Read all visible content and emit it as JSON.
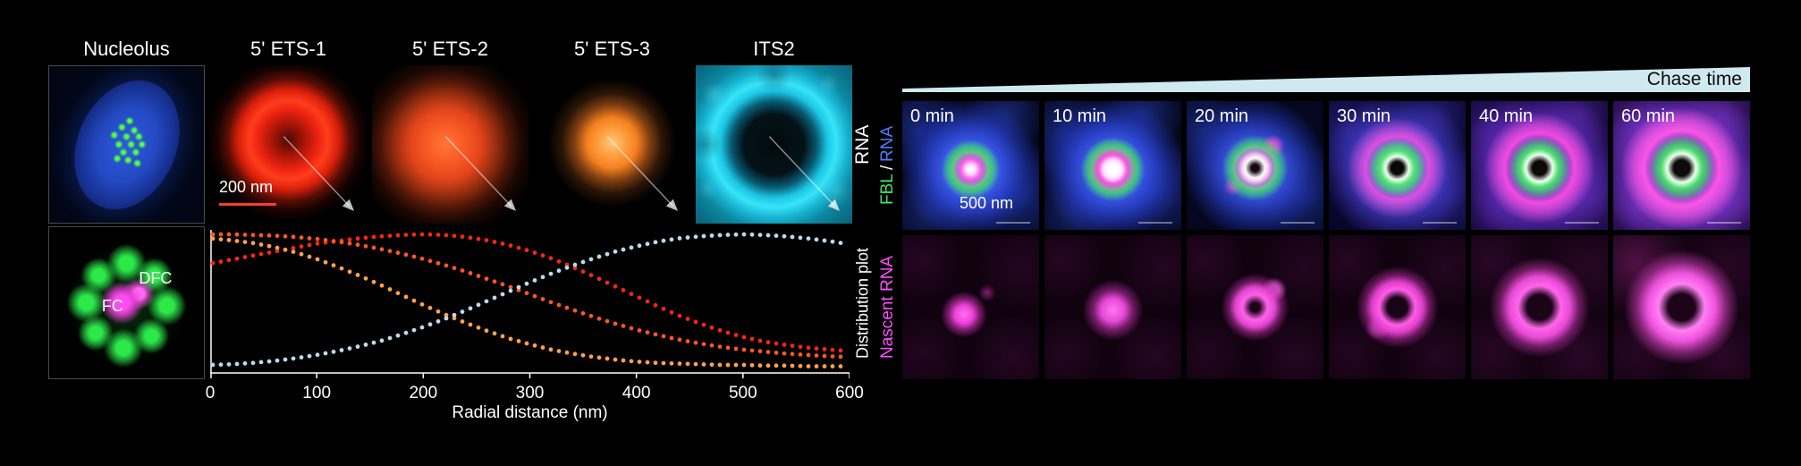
{
  "colors": {
    "fbl_green": "#43e06b",
    "rna_blue": "#4d7dff",
    "nascent_magenta": "#ff4dff",
    "wedge": "#cfe9f0",
    "scalebar_red": "#ff3c28"
  },
  "left": {
    "columns": [
      {
        "label": "Nucleolus"
      },
      {
        "label": "5' ETS-1"
      },
      {
        "label": "5' ETS-2"
      },
      {
        "label": "5' ETS-3"
      },
      {
        "label": "ITS2"
      }
    ],
    "row1_side_label": "RNA",
    "row2_side_label": "Distribution plot",
    "scalebar_200": "200 nm",
    "dfc_label": "DFC",
    "fc_label": "FC"
  },
  "chart_data": {
    "type": "scatter",
    "title": "",
    "xlabel": "Radial distance (nm)",
    "ylabel": "Distribution plot",
    "xlim": [
      0,
      600
    ],
    "ylim": [
      0,
      1
    ],
    "x_ticks": [
      0,
      100,
      200,
      300,
      400,
      500,
      600
    ],
    "grid": false,
    "legend": "none",
    "series": [
      {
        "name": "5' ETS-1",
        "color": "#ff2414",
        "x": [
          0,
          20,
          40,
          60,
          80,
          100,
          120,
          140,
          160,
          180,
          200,
          220,
          240,
          260,
          280,
          300,
          320,
          340,
          360,
          380,
          400,
          420,
          440,
          460,
          480,
          500,
          520,
          540,
          560,
          580,
          600
        ],
        "y": [
          0.78,
          0.81,
          0.84,
          0.87,
          0.9,
          0.93,
          0.95,
          0.97,
          0.985,
          0.995,
          1.0,
          0.995,
          0.98,
          0.955,
          0.92,
          0.875,
          0.82,
          0.755,
          0.685,
          0.61,
          0.535,
          0.46,
          0.39,
          0.33,
          0.275,
          0.23,
          0.195,
          0.17,
          0.15,
          0.135,
          0.125
        ]
      },
      {
        "name": "5' ETS-2",
        "color": "#ff5526",
        "x": [
          0,
          20,
          40,
          60,
          80,
          100,
          120,
          140,
          160,
          180,
          200,
          220,
          240,
          260,
          280,
          300,
          320,
          340,
          360,
          380,
          400,
          420,
          440,
          460,
          480,
          500,
          520,
          540,
          560,
          580,
          600
        ],
        "y": [
          1.0,
          1.0,
          0.995,
          0.99,
          0.98,
          0.965,
          0.945,
          0.92,
          0.89,
          0.855,
          0.815,
          0.77,
          0.72,
          0.665,
          0.61,
          0.55,
          0.49,
          0.435,
          0.38,
          0.33,
          0.285,
          0.245,
          0.21,
          0.18,
          0.155,
          0.135,
          0.12,
          0.105,
          0.095,
          0.085,
          0.08
        ]
      },
      {
        "name": "5' ETS-3",
        "color": "#ffa14d",
        "x": [
          0,
          20,
          40,
          60,
          80,
          100,
          120,
          140,
          160,
          180,
          200,
          220,
          240,
          260,
          280,
          300,
          320,
          340,
          360,
          380,
          400,
          420,
          440,
          460,
          480,
          500,
          520,
          540,
          560,
          580,
          600
        ],
        "y": [
          0.97,
          0.955,
          0.935,
          0.905,
          0.865,
          0.815,
          0.755,
          0.69,
          0.62,
          0.545,
          0.47,
          0.4,
          0.335,
          0.275,
          0.22,
          0.175,
          0.135,
          0.105,
          0.08,
          0.06,
          0.045,
          0.035,
          0.03,
          0.025,
          0.02,
          0.02,
          0.015,
          0.015,
          0.01,
          0.01,
          0.01
        ]
      },
      {
        "name": "ITS2",
        "color": "#b8dcea",
        "x": [
          0,
          20,
          40,
          60,
          80,
          100,
          120,
          140,
          160,
          180,
          200,
          220,
          240,
          260,
          280,
          300,
          320,
          340,
          360,
          380,
          400,
          420,
          440,
          460,
          480,
          500,
          520,
          540,
          560,
          580,
          600
        ],
        "y": [
          0.02,
          0.025,
          0.035,
          0.05,
          0.07,
          0.095,
          0.125,
          0.16,
          0.2,
          0.25,
          0.305,
          0.365,
          0.43,
          0.5,
          0.57,
          0.64,
          0.705,
          0.765,
          0.82,
          0.87,
          0.91,
          0.945,
          0.97,
          0.985,
          0.995,
          1.0,
          0.995,
          0.985,
          0.97,
          0.95,
          0.925
        ]
      }
    ]
  },
  "right": {
    "chase_label": "Chase time",
    "timepoints": [
      "0 min",
      "10 min",
      "20 min",
      "30 min",
      "40 min",
      "60 min"
    ],
    "fbl_label": "FBL",
    "slash": "/",
    "rna_label": "RNA",
    "nascent_label": "Nascent RNA",
    "scalebar_500": "500 nm"
  }
}
